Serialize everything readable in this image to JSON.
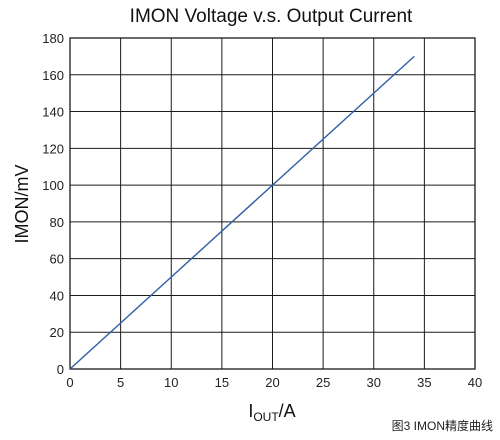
{
  "chart_data": {
    "type": "line",
    "title": "IMON Voltage v.s. Output Current",
    "xlabel": {
      "main": "I",
      "subscript": "OUT",
      "suffix": "/A"
    },
    "ylabel": "IMON/mV",
    "xlim": [
      0,
      40
    ],
    "ylim": [
      0,
      180
    ],
    "x_ticks": [
      0,
      5,
      10,
      15,
      20,
      25,
      30,
      35,
      40
    ],
    "y_ticks": [
      0,
      20,
      40,
      60,
      80,
      100,
      120,
      140,
      160,
      180
    ],
    "grid": true,
    "series": [
      {
        "color": "#2e5ea8",
        "points": [
          {
            "x": 0,
            "y": 0
          },
          {
            "x": 34,
            "y": 170
          }
        ]
      }
    ]
  },
  "caption": "图3 IMON精度曲线",
  "colors": {
    "grid": "#1a1a1a",
    "axis": "#1a1a1a",
    "line": "#2e5ea8"
  }
}
